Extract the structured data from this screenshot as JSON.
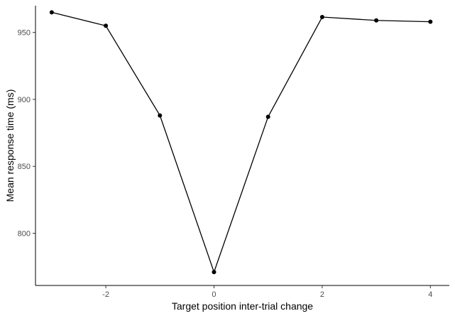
{
  "chart_data": {
    "type": "line",
    "xlabel": "Target position inter-trial change",
    "ylabel": "Mean response time (ms)",
    "xlim": [
      -3.3,
      4.35
    ],
    "ylim": [
      761,
      970
    ],
    "x_ticks": [
      -2,
      0,
      2,
      4
    ],
    "y_ticks": [
      800,
      850,
      900,
      950
    ],
    "x_tick_labels": [
      "-2",
      "0",
      "2",
      "4"
    ],
    "y_tick_labels": [
      "800",
      "850",
      "900",
      "950"
    ],
    "grid": false,
    "series": [
      {
        "x": [
          -3,
          -2,
          -1,
          0,
          1,
          2,
          3,
          4
        ],
        "y": [
          965,
          955,
          888,
          771,
          887,
          961.5,
          959,
          958
        ]
      }
    ],
    "colors": {
      "line": "#000000",
      "points": "#000000",
      "axis": "#000000"
    }
  }
}
